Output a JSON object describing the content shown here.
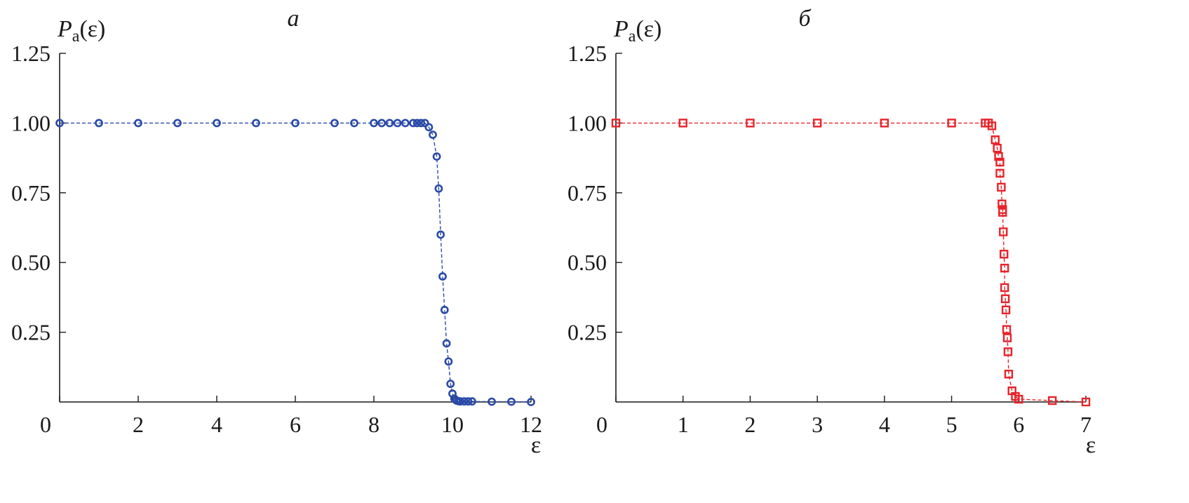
{
  "chart_data": [
    {
      "type": "scatter",
      "panel_label": "а",
      "ylabel": {
        "main": "P",
        "sub": "a",
        "arg": "(ε)"
      },
      "xlabel": "ε",
      "xlim": [
        0,
        12
      ],
      "ylim": [
        0,
        1.25
      ],
      "x_ticks": [
        0,
        2,
        4,
        6,
        8,
        10,
        12
      ],
      "y_ticks": [
        0.25,
        0.5,
        0.75,
        1.0,
        1.25
      ],
      "x_tick_labels": [
        "0",
        "2",
        "4",
        "6",
        "8",
        "10",
        "12"
      ],
      "y_tick_labels": [
        "0.25",
        "0.50",
        "0.75",
        "1.00",
        "1.25"
      ],
      "grid": false,
      "color": "#2a4aa8",
      "marker": "circle",
      "line_style": "dashed",
      "series": [
        {
          "x": [
            0,
            1,
            2,
            3,
            4,
            5,
            6,
            7,
            7.5,
            8,
            8.2,
            8.4,
            8.6,
            8.8,
            9.0,
            9.1,
            9.2,
            9.3,
            9.4,
            9.5,
            9.6,
            9.65,
            9.7,
            9.75,
            9.8,
            9.85,
            9.9,
            9.95,
            10.0,
            10.05,
            10.1,
            10.15,
            10.2,
            10.3,
            10.4,
            10.5,
            11.0,
            11.5,
            12.0
          ],
          "y": [
            1.0,
            1.0,
            1.0,
            1.0,
            1.0,
            1.0,
            1.0,
            1.0,
            1.0,
            1.0,
            1.0,
            1.0,
            1.0,
            1.0,
            1.0,
            1.0,
            1.0,
            1.0,
            0.985,
            0.958,
            0.88,
            0.765,
            0.6,
            0.45,
            0.33,
            0.21,
            0.145,
            0.065,
            0.03,
            0.012,
            0.005,
            0.003,
            0.002,
            0.002,
            0.002,
            0.002,
            0.001,
            0.001,
            0.0
          ]
        }
      ]
    },
    {
      "type": "scatter",
      "panel_label": "б",
      "ylabel": {
        "main": "P",
        "sub": "a",
        "arg": "(ε)"
      },
      "xlabel": "ε",
      "xlim": [
        0,
        7
      ],
      "ylim": [
        0,
        1.25
      ],
      "x_ticks": [
        0,
        1,
        2,
        3,
        4,
        5,
        6,
        7
      ],
      "y_ticks": [
        0.25,
        0.5,
        0.75,
        1.0,
        1.25
      ],
      "x_tick_labels": [
        "0",
        "1",
        "2",
        "3",
        "4",
        "5",
        "6",
        "7"
      ],
      "y_tick_labels": [
        "0.25",
        "0.50",
        "0.75",
        "1.00",
        "1.25"
      ],
      "grid": false,
      "color": "#e8232a",
      "marker": "square",
      "line_style": "dashed",
      "series": [
        {
          "x": [
            0,
            1,
            2,
            3,
            4,
            5,
            5.5,
            5.55,
            5.6,
            5.65,
            5.68,
            5.7,
            5.72,
            5.72,
            5.74,
            5.75,
            5.76,
            5.76,
            5.77,
            5.78,
            5.79,
            5.79,
            5.8,
            5.81,
            5.82,
            5.83,
            5.84,
            5.85,
            5.9,
            5.95,
            6.0,
            6.5,
            7.0
          ],
          "y": [
            1.0,
            1.0,
            1.0,
            1.0,
            1.0,
            1.0,
            1.0,
            1.0,
            0.99,
            0.94,
            0.91,
            0.88,
            0.86,
            0.82,
            0.77,
            0.71,
            0.69,
            0.68,
            0.61,
            0.53,
            0.48,
            0.41,
            0.37,
            0.33,
            0.26,
            0.23,
            0.18,
            0.1,
            0.04,
            0.02,
            0.01,
            0.005,
            0.0
          ]
        }
      ]
    }
  ]
}
